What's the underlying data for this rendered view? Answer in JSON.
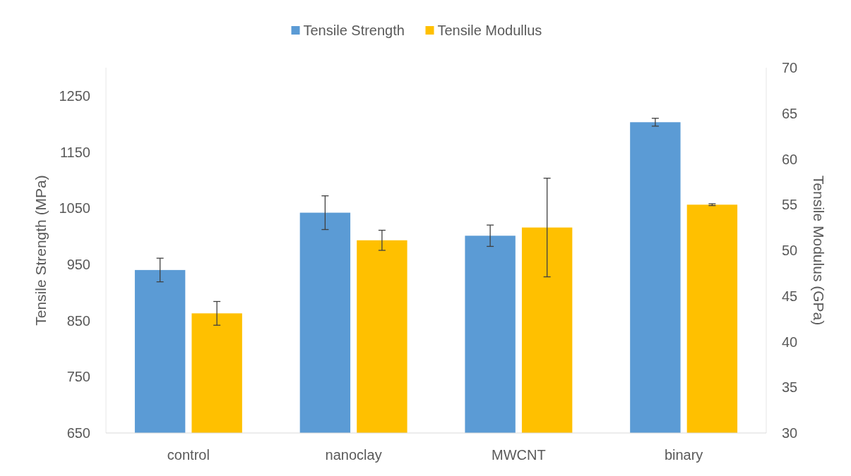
{
  "chart_data": {
    "type": "bar",
    "categories": [
      "control",
      "nanoclay",
      "MWCNT",
      "binary"
    ],
    "series": [
      {
        "name": "Tensile Strength",
        "color": "#5b9bd5",
        "values": [
          940,
          1042,
          1001,
          1203
        ],
        "errors": [
          21,
          30,
          19,
          7
        ]
      },
      {
        "name": "Tensile Modullus",
        "color": "#ffc000",
        "values": [
          43.1,
          51.1,
          52.5,
          55.0
        ],
        "errors": [
          1.3,
          1.1,
          5.4,
          0.1
        ],
        "axis": "y2"
      }
    ],
    "ylabel": "Tensile Strength (MPa)",
    "y2label": "Tensile Modulus (GPa)",
    "ylim": [
      650,
      1300
    ],
    "yticks": [
      650,
      750,
      850,
      950,
      1050,
      1150,
      1250
    ],
    "y2lim": [
      30,
      70
    ],
    "y2ticks": [
      30,
      35,
      40,
      45,
      50,
      55,
      60,
      65,
      70
    ],
    "legend": "top",
    "grid": false
  }
}
